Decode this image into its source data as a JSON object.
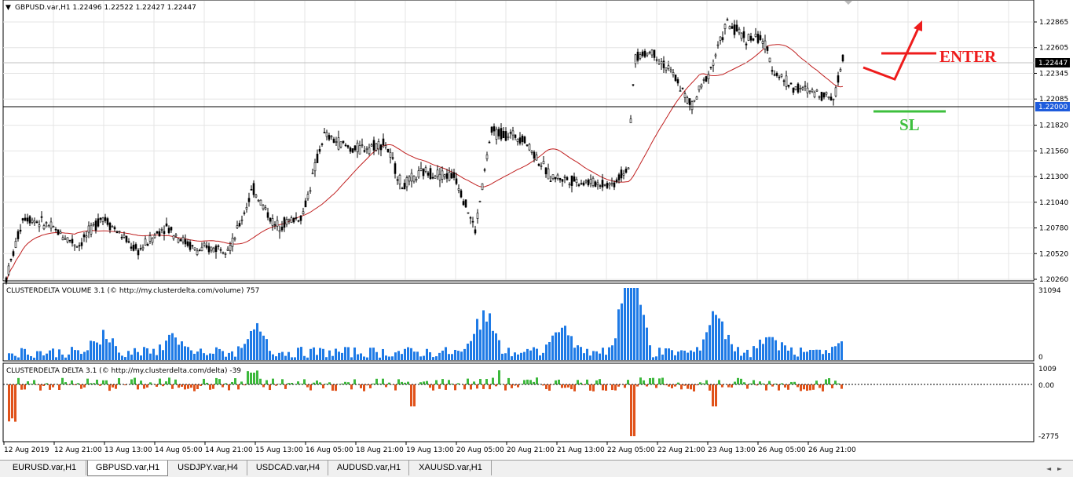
{
  "chart": {
    "header": "GBPUSD.var,H1  1.22496 1.22522 1.22427 1.22447",
    "price_ticks": [
      "1.22865",
      "1.22605",
      "1.22345",
      "1.22085",
      "1.21820",
      "1.21560",
      "1.21300",
      "1.21040",
      "1.20780",
      "1.20520",
      "1.20260"
    ],
    "current_price": "1.22447",
    "level_price": "1.22000",
    "annotation_enter": "ENTER",
    "annotation_sl": "SL",
    "colors": {
      "ma": "#c02020",
      "candle": "#000000",
      "enter": "#ee1c1c",
      "sl": "#3dbf3d",
      "volume": "#1e7ae6",
      "delta_pos": "#3cb83c",
      "delta_neg": "#e0521a",
      "price_box": "#000000",
      "level_box": "#1e5bdc"
    }
  },
  "volume_panel": {
    "label": "CLUSTERDELTA VOLUME 3.1 (© http://my.clusterdelta.com/volume) 757",
    "max_tick": "31094",
    "min_tick": "0"
  },
  "delta_panel": {
    "label": "CLUSTERDELTA DELTA 3.1 (© http://my.clusterdelta.com/delta) -39",
    "max_tick": "1009",
    "zero_tick": "0.00",
    "min_tick": "-2775"
  },
  "time_axis": [
    "12 Aug 2019",
    "12 Aug 21:00",
    "13 Aug 13:00",
    "14 Aug 05:00",
    "14 Aug 21:00",
    "15 Aug 13:00",
    "16 Aug 05:00",
    "18 Aug 21:00",
    "19 Aug 13:00",
    "20 Aug 05:00",
    "20 Aug 21:00",
    "21 Aug 13:00",
    "22 Aug 05:00",
    "22 Aug 21:00",
    "23 Aug 13:00",
    "26 Aug 05:00",
    "26 Aug 21:00"
  ],
  "tabs": [
    {
      "label": "EURUSD.var,H1",
      "active": false
    },
    {
      "label": "GBPUSD.var,H1",
      "active": true
    },
    {
      "label": "USDJPY.var,H4",
      "active": false
    },
    {
      "label": "USDCAD.var,H4",
      "active": false
    },
    {
      "label": "AUDUSD.var,H1",
      "active": false
    },
    {
      "label": "XAUUSD.var,H1",
      "active": false
    }
  ]
}
